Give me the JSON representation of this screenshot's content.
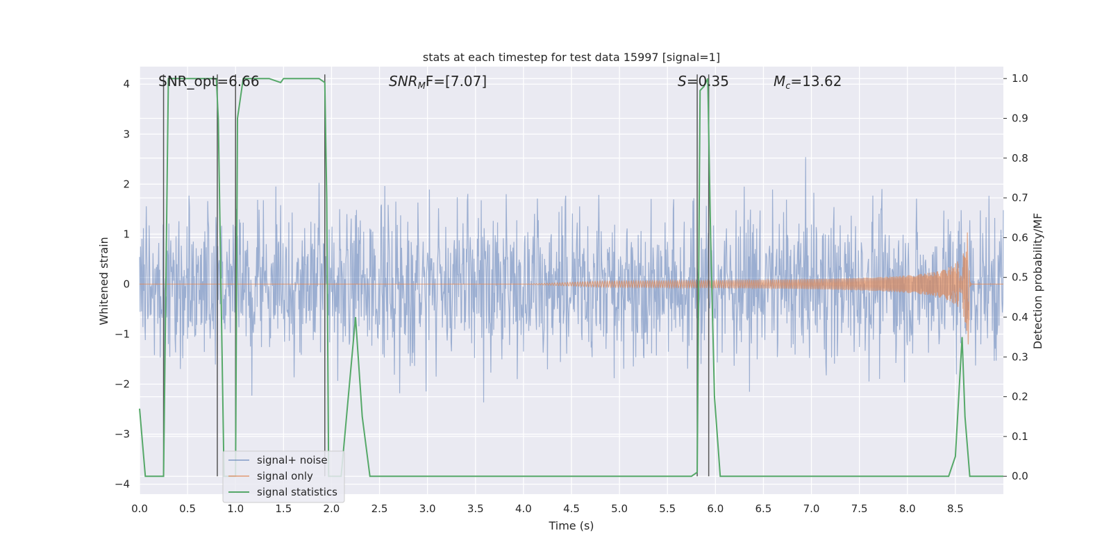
{
  "chart_data": {
    "type": "line",
    "title": "stats at each timestep for test data 15997 [signal=1]",
    "xlabel": "Time (s)",
    "ylabel_left": "Whitened strain",
    "ylabel_right": "Detection probability/MF",
    "xlim": [
      0.0,
      9.0
    ],
    "ylim_left": [
      -4.2,
      4.35
    ],
    "ylim_right": [
      -0.045,
      1.03
    ],
    "x_ticks": [
      "0.0",
      "0.5",
      "1.0",
      "1.5",
      "2.0",
      "2.5",
      "3.0",
      "3.5",
      "4.0",
      "4.5",
      "5.0",
      "5.5",
      "6.0",
      "6.5",
      "7.0",
      "7.5",
      "8.0",
      "8.5"
    ],
    "y_left_ticks": [
      "4",
      "3",
      "2",
      "1",
      "0",
      "−1",
      "−2",
      "−3",
      "−4"
    ],
    "y_right_ticks": [
      "1.0",
      "0.9",
      "0.8",
      "0.7",
      "0.6",
      "0.5",
      "0.4",
      "0.3",
      "0.2",
      "0.1",
      "0.0"
    ],
    "grid": true,
    "legend_position": "lower-left",
    "annotations": {
      "snr_opt": "SNR_opt=6.66",
      "snr_mf": "SNR",
      "snr_mf_sub": "M",
      "snr_mf_rest": "F=[7.07]",
      "s_var": "S",
      "s_val": "=0.35",
      "mc_var": "M",
      "mc_sub": "c",
      "mc_val": "=13.62"
    },
    "vertical_markers": [
      0.25,
      0.81,
      1.0,
      1.93,
      5.81,
      5.93
    ],
    "series": [
      {
        "name": "signal+ noise",
        "color": "#4c72b0",
        "axis": "left",
        "description_range": [
          -3.8,
          4.0
        ]
      },
      {
        "name": "signal only",
        "color": "#dd8452",
        "axis": "left",
        "chirp": {
          "start": 4.0,
          "merger": 8.64,
          "peak_amplitude": 1.45
        }
      },
      {
        "name": "signal statistics",
        "color": "#55a868",
        "axis": "right",
        "x": [
          0.0,
          0.06,
          0.25,
          0.3,
          0.8,
          0.82,
          0.88,
          1.0,
          1.02,
          1.08,
          1.35,
          1.47,
          1.5,
          1.87,
          1.93,
          1.95,
          1.97,
          2.05,
          2.1,
          2.25,
          2.32,
          2.4,
          2.45,
          4.0,
          5.5,
          5.75,
          5.81,
          5.84,
          5.88,
          5.92,
          5.95,
          5.99,
          6.05,
          6.5,
          8.2,
          8.43,
          8.5,
          8.57,
          8.6,
          8.65,
          8.7,
          9.0
        ],
        "y": [
          0.17,
          0.0,
          0.0,
          1.0,
          1.0,
          0.9,
          0.0,
          0.0,
          0.9,
          1.0,
          1.0,
          0.99,
          1.0,
          1.0,
          0.99,
          0.7,
          0.0,
          0.0,
          0.0,
          0.4,
          0.15,
          0.0,
          0.0,
          0.0,
          0.0,
          0.0,
          0.01,
          0.97,
          0.98,
          1.0,
          0.6,
          0.2,
          0.0,
          0.0,
          0.0,
          0.0,
          0.05,
          0.35,
          0.15,
          0.0,
          0.0,
          0.0
        ]
      }
    ]
  }
}
